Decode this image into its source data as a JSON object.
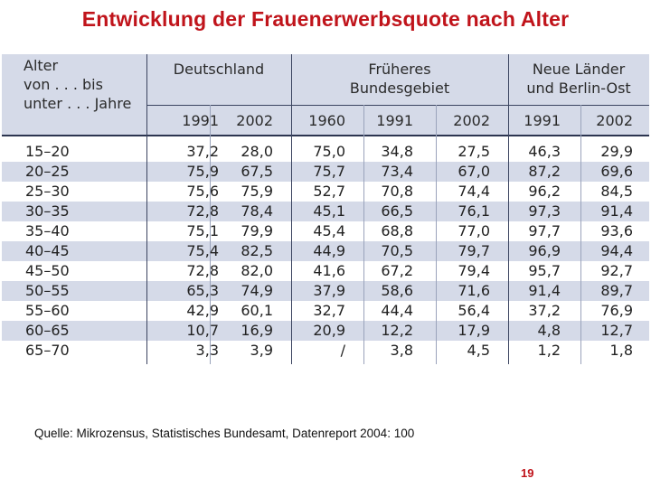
{
  "title": "Entwicklung der Frauenerwerbsquote nach Alter",
  "source": "Quelle: Mikrozensus, Statistisches Bundesamt, Datenreport 2004: 100",
  "page_number": "19",
  "colors": {
    "title": "#c0141b",
    "band": "#d5dae8",
    "line": "#3b4460"
  },
  "chart_data": {
    "type": "table",
    "row_header_label": [
      "Alter",
      "von . . . bis",
      "unter . . . Jahre"
    ],
    "groups": [
      {
        "label": [
          "Deutschland"
        ],
        "years": [
          "1991",
          "2002"
        ]
      },
      {
        "label": [
          "Früheres",
          "Bundesgebiet"
        ],
        "years": [
          "1960",
          "1991",
          "2002"
        ]
      },
      {
        "label": [
          "Neue Länder",
          "und Berlin-Ost"
        ],
        "years": [
          "1991",
          "2002"
        ]
      }
    ],
    "rows": [
      {
        "age": "15–20",
        "values": [
          "37,2",
          "28,0",
          "75,0",
          "34,8",
          "27,5",
          "46,3",
          "29,9"
        ]
      },
      {
        "age": "20–25",
        "values": [
          "75,9",
          "67,5",
          "75,7",
          "73,4",
          "67,0",
          "87,2",
          "69,6"
        ]
      },
      {
        "age": "25–30",
        "values": [
          "75,6",
          "75,9",
          "52,7",
          "70,8",
          "74,4",
          "96,2",
          "84,5"
        ]
      },
      {
        "age": "30–35",
        "values": [
          "72,8",
          "78,4",
          "45,1",
          "66,5",
          "76,1",
          "97,3",
          "91,4"
        ]
      },
      {
        "age": "35–40",
        "values": [
          "75,1",
          "79,9",
          "45,4",
          "68,8",
          "77,0",
          "97,7",
          "93,6"
        ]
      },
      {
        "age": "40–45",
        "values": [
          "75,4",
          "82,5",
          "44,9",
          "70,5",
          "79,7",
          "96,9",
          "94,4"
        ]
      },
      {
        "age": "45–50",
        "values": [
          "72,8",
          "82,0",
          "41,6",
          "67,2",
          "79,4",
          "95,7",
          "92,7"
        ]
      },
      {
        "age": "50–55",
        "values": [
          "65,3",
          "74,9",
          "37,9",
          "58,6",
          "71,6",
          "91,4",
          "89,7"
        ]
      },
      {
        "age": "55–60",
        "values": [
          "42,9",
          "60,1",
          "32,7",
          "44,4",
          "56,4",
          "37,2",
          "76,9"
        ]
      },
      {
        "age": "60–65",
        "values": [
          "10,7",
          "16,9",
          "20,9",
          "12,2",
          "17,9",
          "4,8",
          "12,7"
        ]
      },
      {
        "age": "65–70",
        "values": [
          "3,3",
          "3,9",
          "/",
          "3,8",
          "4,5",
          "1,2",
          "1,8"
        ]
      }
    ]
  }
}
